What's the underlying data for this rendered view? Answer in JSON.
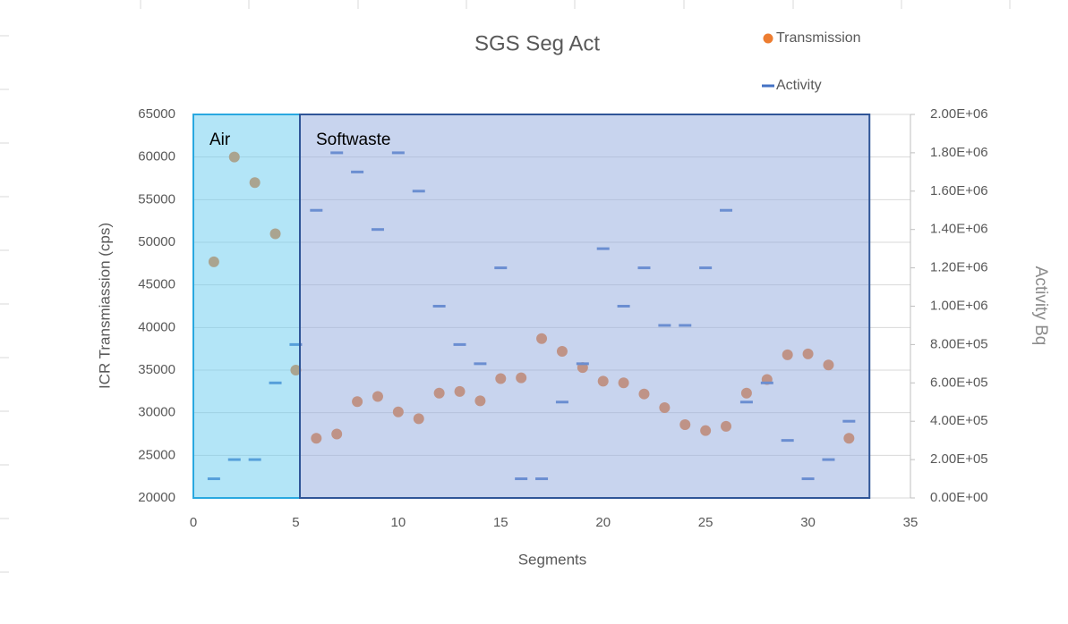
{
  "chart_data": {
    "type": "scatter",
    "title": "SGS  Seg Act",
    "xlabel": "Segments",
    "ylabel": "ICR Transmiassion (cps)",
    "y2label": "Activity Bq",
    "x": [
      1,
      2,
      3,
      4,
      5,
      6,
      7,
      8,
      9,
      10,
      11,
      12,
      13,
      14,
      15,
      16,
      17,
      18,
      19,
      20,
      21,
      22,
      23,
      24,
      25,
      26,
      27,
      28,
      29,
      30,
      31,
      32
    ],
    "series": [
      {
        "name": "Transmission",
        "color": "#ed7d31",
        "marker": "circle",
        "values": [
          47700,
          60000,
          57000,
          51000,
          35000,
          27000,
          27500,
          31300,
          31900,
          30100,
          29300,
          32300,
          32500,
          31400,
          34000,
          34100,
          38700,
          37200,
          35300,
          33700,
          33500,
          32200,
          30600,
          28600,
          27900,
          28400,
          32300,
          33900,
          36800,
          36900,
          35600,
          27000
        ]
      },
      {
        "name": "Activity",
        "color": "#4472c4",
        "marker": "dash",
        "axis": "y2",
        "values": [
          100000,
          200000,
          200000,
          600000,
          800000,
          1500000,
          1800000,
          1700000,
          1400000,
          1800000,
          1600000,
          1000000,
          800000,
          700000,
          1200000,
          100000,
          100000,
          500000,
          700000,
          1300000,
          1000000,
          1200000,
          900000,
          900000,
          1200000,
          1500000,
          500000,
          600000,
          300000,
          100000,
          200000,
          400000
        ]
      }
    ],
    "regions": [
      {
        "label": "Air",
        "x": [
          0,
          5.2
        ],
        "color": "#67cbef",
        "border": "#29a8e0"
      },
      {
        "label": "Softwaste",
        "x": [
          5.2,
          33
        ],
        "color": "#91a9dd",
        "border": "#2f5597"
      }
    ],
    "xlim": [
      0,
      35
    ],
    "xticks": [
      0,
      5,
      10,
      15,
      20,
      25,
      30,
      35
    ],
    "ylim": [
      20000,
      65000
    ],
    "yticks": [
      20000,
      25000,
      30000,
      35000,
      40000,
      45000,
      50000,
      55000,
      60000,
      65000
    ],
    "y2lim": [
      0,
      2000000
    ],
    "y2ticks": [
      {
        "value": 0,
        "label": "0.00E+00"
      },
      {
        "value": 200000,
        "label": "2.00E+05"
      },
      {
        "value": 400000,
        "label": "4.00E+05"
      },
      {
        "value": 600000,
        "label": "6.00E+05"
      },
      {
        "value": 800000,
        "label": "8.00E+05"
      },
      {
        "value": 1000000,
        "label": "1.00E+06"
      },
      {
        "value": 1200000,
        "label": "1.20E+06"
      },
      {
        "value": 1400000,
        "label": "1.40E+06"
      },
      {
        "value": 1600000,
        "label": "1.60E+06"
      },
      {
        "value": 1800000,
        "label": "1.80E+06"
      },
      {
        "value": 2000000,
        "label": "2.00E+06"
      }
    ],
    "grid": true,
    "legend": "top-right"
  }
}
